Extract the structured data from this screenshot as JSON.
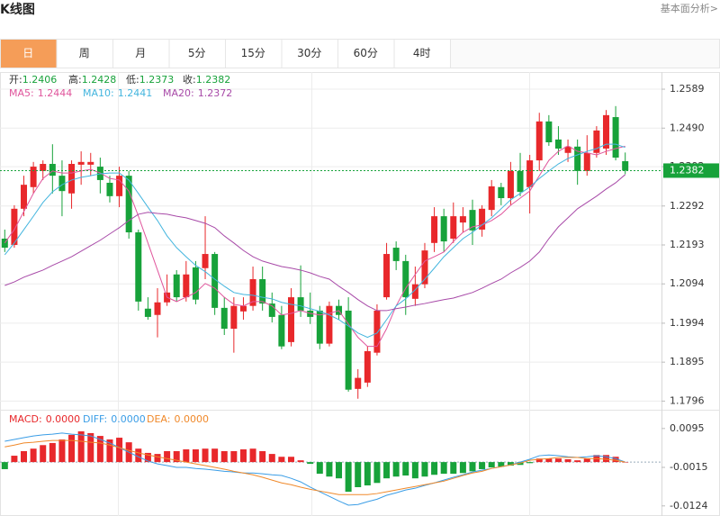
{
  "header": {
    "title": "K线图",
    "link": "基本面分析>"
  },
  "tabs": {
    "items": [
      "日",
      "周",
      "月",
      "5分",
      "15分",
      "30分",
      "60分",
      "4时"
    ],
    "selected": 0
  },
  "chart_data": [
    {
      "type": "candlestick",
      "ohlc_labels": [
        "开:",
        "高:",
        "低:",
        "收:"
      ],
      "open": [
        1.2209,
        1.2193,
        1.2285,
        1.234,
        1.2381,
        1.2399,
        1.2369,
        1.2324,
        1.2397,
        1.2397,
        1.2392,
        1.2351,
        1.2317,
        1.2369,
        1.2225,
        1.2031,
        1.2015,
        1.2047,
        1.2118,
        1.206,
        1.2136,
        1.2134,
        1.217,
        1.2033,
        1.198,
        1.2024,
        1.2038,
        1.2106,
        1.2044,
        1.2015,
        1.1946,
        1.206,
        1.2026,
        1.2026,
        1.1942,
        1.2038,
        1.2026,
        1.1827,
        1.1843,
        1.1919,
        1.206,
        1.2186,
        1.2152,
        1.2056,
        1.2093,
        1.2198,
        1.2266,
        1.2209,
        1.225,
        1.2282,
        1.2232,
        1.2282,
        1.234,
        1.2312,
        1.2381,
        1.234,
        1.2408,
        1.2507,
        1.2461,
        1.2427,
        1.2443,
        1.2381,
        1.2427,
        1.2438,
        1.2518,
        1.2406
      ],
      "high": [
        1.2232,
        1.2294,
        1.2369,
        1.2404,
        1.2408,
        1.2449,
        1.2408,
        1.2408,
        1.2431,
        1.2427,
        1.2415,
        1.2369,
        1.2392,
        1.2381,
        1.2232,
        1.206,
        1.2083,
        1.2118,
        1.2129,
        1.2152,
        1.2152,
        1.2266,
        1.2175,
        1.206,
        1.206,
        1.206,
        1.2138,
        1.2138,
        1.2072,
        1.2038,
        1.2083,
        1.2141,
        1.2072,
        1.2038,
        1.2049,
        1.2054,
        1.206,
        1.1877,
        1.1935,
        1.2042,
        1.2198,
        1.2202,
        1.2168,
        1.2138,
        1.2198,
        1.2289,
        1.2285,
        1.2301,
        1.2289,
        1.2308,
        1.2294,
        1.2358,
        1.2351,
        1.2404,
        1.2427,
        1.2422,
        1.2529,
        1.2523,
        1.2495,
        1.2461,
        1.2461,
        1.2472,
        1.2495,
        1.2536,
        1.2546,
        1.2428
      ],
      "low": [
        1.2175,
        1.2186,
        1.2266,
        1.2324,
        1.2358,
        1.2324,
        1.2266,
        1.2285,
        1.2346,
        1.2369,
        1.2324,
        1.2301,
        1.2289,
        1.2209,
        1.2026,
        1.2003,
        1.1958,
        1.2038,
        1.2049,
        1.2049,
        1.2042,
        1.2106,
        1.2015,
        1.1964,
        1.1919,
        1.2003,
        1.2026,
        1.2026,
        1.1996,
        1.1928,
        1.1935,
        1.201,
        1.1992,
        1.1928,
        1.1935,
        1.2003,
        1.182,
        1.1802,
        1.1832,
        1.1912,
        1.2054,
        1.2129,
        1.2015,
        1.2038,
        1.2083,
        1.2175,
        1.2175,
        1.2198,
        1.2225,
        1.2193,
        1.2214,
        1.2266,
        1.2294,
        1.2294,
        1.2317,
        1.2273,
        1.2381,
        1.2445,
        1.2422,
        1.2404,
        1.2346,
        1.2369,
        1.2415,
        1.2422,
        1.2408,
        1.2373
      ],
      "close": [
        1.2186,
        1.2285,
        1.2346,
        1.2392,
        1.2399,
        1.2369,
        1.233,
        1.2399,
        1.2404,
        1.2404,
        1.2358,
        1.2317,
        1.2369,
        1.2225,
        1.2049,
        1.201,
        1.2047,
        1.2072,
        1.206,
        1.2118,
        1.2054,
        1.217,
        1.2033,
        1.198,
        1.2038,
        1.2038,
        1.2106,
        1.2044,
        1.201,
        1.1935,
        1.206,
        1.2026,
        1.201,
        1.1942,
        1.2038,
        1.2015,
        1.1825,
        1.1855,
        1.1923,
        1.2026,
        1.217,
        1.2152,
        1.206,
        1.2093,
        1.2179,
        1.2266,
        1.2202,
        1.2266,
        1.2266,
        1.223,
        1.2285,
        1.2342,
        1.2312,
        1.2381,
        1.2328,
        1.2408,
        1.2507,
        1.2454,
        1.2438,
        1.2443,
        1.2381,
        1.2427,
        1.2484,
        1.2523,
        1.2415,
        1.2382
      ],
      "up_color": "#e8282b",
      "down_color": "#17a23a",
      "series": [
        {
          "name": "MA5:",
          "color": "#e0559c",
          "values": [
            1.2198,
            1.2232,
            1.2278,
            1.2324,
            1.2362,
            1.2381,
            1.2376,
            1.2376,
            1.2381,
            1.2385,
            1.2376,
            1.2362,
            1.2358,
            1.233,
            1.2266,
            1.2198,
            1.2129,
            1.206,
            1.2049,
            1.206,
            1.2072,
            1.2095,
            1.2083,
            1.206,
            1.2042,
            1.2038,
            1.2049,
            1.2049,
            1.2038,
            1.2015,
            1.2019,
            1.2026,
            1.2019,
            1.2015,
            1.2019,
            1.2026,
            1.1992,
            1.1958,
            1.1935,
            1.1935,
            1.198,
            1.2038,
            1.2083,
            1.2118,
            1.2152,
            1.2163,
            1.2175,
            1.2202,
            1.2225,
            1.2239,
            1.2244,
            1.2255,
            1.2271,
            1.2294,
            1.2312,
            1.233,
            1.2369,
            1.2408,
            1.2431,
            1.2445,
            1.2431,
            1.2427,
            1.2422,
            1.2431,
            1.2438,
            1.2444
          ]
        },
        {
          "name": "MA10:",
          "color": "#43b5de",
          "values": [
            1.2168,
            1.2198,
            1.2232,
            1.2266,
            1.2301,
            1.2328,
            1.2346,
            1.2358,
            1.2365,
            1.2369,
            1.2374,
            1.2376,
            1.2376,
            1.2358,
            1.2324,
            1.2289,
            1.2255,
            1.2216,
            1.2186,
            1.2163,
            1.2141,
            1.2125,
            1.2106,
            1.2088,
            1.2072,
            1.2067,
            1.2065,
            1.206,
            1.2056,
            1.2047,
            1.2042,
            1.2038,
            1.2031,
            1.2024,
            1.2015,
            1.2003,
            1.1987,
            1.1969,
            1.1958,
            1.1969,
            1.2003,
            1.2038,
            1.2056,
            1.2079,
            1.2106,
            1.2134,
            1.2163,
            1.2186,
            1.2209,
            1.2225,
            1.2244,
            1.2262,
            1.2285,
            1.2308,
            1.2324,
            1.234,
            1.2362,
            1.2381,
            1.2399,
            1.2413,
            1.2422,
            1.2431,
            1.2438,
            1.2449,
            1.2449,
            1.2441
          ]
        },
        {
          "name": "MA20:",
          "color": "#a84aa8",
          "values": [
            1.209,
            1.2099,
            1.2111,
            1.212,
            1.2129,
            1.2141,
            1.2152,
            1.2163,
            1.2177,
            1.2191,
            1.2205,
            1.2221,
            1.2237,
            1.2255,
            1.2271,
            1.2276,
            1.2273,
            1.2271,
            1.2266,
            1.2262,
            1.2255,
            1.2248,
            1.2237,
            1.2216,
            1.2198,
            1.2179,
            1.2163,
            1.2152,
            1.2145,
            1.2138,
            1.2134,
            1.2129,
            1.2122,
            1.2113,
            1.2106,
            1.2088,
            1.2072,
            1.2054,
            1.2038,
            1.2026,
            1.2026,
            1.2031,
            1.2035,
            1.204,
            1.2044,
            1.2049,
            1.2054,
            1.2058,
            1.2065,
            1.2072,
            1.2083,
            1.2095,
            1.2106,
            1.2122,
            1.2136,
            1.2152,
            1.2175,
            1.2209,
            1.2239,
            1.2262,
            1.2285,
            1.2301,
            1.2317,
            1.2335,
            1.2351,
            1.2372
          ]
        }
      ],
      "ylim": [
        1.1774,
        1.2628
      ],
      "yticks": [
        1.1796,
        1.1895,
        1.1994,
        1.2094,
        1.2193,
        1.2292,
        1.2392,
        {
          "value": 1.249,
          "label": "1.2490"
        },
        1.2589
      ],
      "grid": true
    },
    {
      "type": "macd",
      "up_color": "#e8282b",
      "down_color": "#17a23a",
      "series": [
        {
          "name": "MACD:",
          "style": "bar",
          "color": "#e8282b",
          "readout_label": "0.0000",
          "values": [
            -0.002,
            0.0018,
            0.0031,
            0.0038,
            0.0048,
            0.0054,
            0.0064,
            0.0077,
            0.0087,
            0.0082,
            0.0074,
            0.0064,
            0.0069,
            0.0056,
            0.0038,
            0.0026,
            0.0023,
            0.0031,
            0.0031,
            0.0036,
            0.0036,
            0.0038,
            0.0038,
            0.0031,
            0.0031,
            0.0036,
            0.0038,
            0.0031,
            0.0023,
            0.0015,
            0.0015,
            0.0005,
            -0.0005,
            -0.0033,
            -0.0041,
            -0.0046,
            -0.0084,
            -0.0071,
            -0.0066,
            -0.0059,
            -0.0046,
            -0.0041,
            -0.0038,
            -0.0046,
            -0.0041,
            -0.0036,
            -0.0033,
            -0.0033,
            -0.0031,
            -0.0026,
            -0.002,
            -0.0015,
            -0.0013,
            -0.001,
            -0.0008,
            -0.0003,
            0.001,
            0.001,
            0.001,
            0.0008,
            0.0005,
            0.001,
            0.002,
            0.002,
            0.0015,
            0
          ]
        },
        {
          "name": "DIFF:",
          "style": "line",
          "color": "#3a9de6",
          "readout_label": "0.0000",
          "values": [
            0.0059,
            0.0064,
            0.0069,
            0.0074,
            0.0077,
            0.0079,
            0.0082,
            0.0079,
            0.0077,
            0.0074,
            0.0064,
            0.0054,
            0.0041,
            0.0028,
            0.0015,
            0.0003,
            -0.0005,
            -0.001,
            -0.0015,
            -0.0015,
            -0.0018,
            -0.002,
            -0.0023,
            -0.0026,
            -0.0028,
            -0.0031,
            -0.0031,
            -0.0033,
            -0.0036,
            -0.0038,
            -0.0046,
            -0.0056,
            -0.0071,
            -0.0084,
            -0.0097,
            -0.011,
            -0.0122,
            -0.012,
            -0.0112,
            -0.0105,
            -0.0094,
            -0.0087,
            -0.0079,
            -0.0074,
            -0.0066,
            -0.0059,
            -0.0051,
            -0.0043,
            -0.0036,
            -0.0028,
            -0.0023,
            -0.0018,
            -0.0013,
            -0.0008,
            0.0,
            0.0008,
            0.0018,
            0.002,
            0.0018,
            0.0015,
            0.0013,
            0.0015,
            0.0018,
            0.0015,
            0.001,
            0
          ]
        },
        {
          "name": "DEA:",
          "style": "line",
          "color": "#f0892a",
          "readout_label": "0.0000",
          "values": [
            0.0043,
            0.0048,
            0.0054,
            0.0056,
            0.0059,
            0.0061,
            0.0061,
            0.0061,
            0.0059,
            0.0056,
            0.0054,
            0.0048,
            0.0041,
            0.0033,
            0.0026,
            0.002,
            0.0015,
            0.001,
            0.0005,
            0.0,
            -0.0005,
            -0.001,
            -0.0015,
            -0.002,
            -0.0026,
            -0.0031,
            -0.0036,
            -0.0043,
            -0.0051,
            -0.0059,
            -0.0064,
            -0.0071,
            -0.0077,
            -0.0082,
            -0.0087,
            -0.0092,
            -0.0092,
            -0.0092,
            -0.0092,
            -0.0089,
            -0.0084,
            -0.0079,
            -0.0074,
            -0.0069,
            -0.0064,
            -0.0059,
            -0.0054,
            -0.0046,
            -0.0038,
            -0.0031,
            -0.0026,
            -0.0018,
            -0.0013,
            -0.0008,
            -0.0003,
            0.0005,
            0.0008,
            0.001,
            0.0013,
            0.0013,
            0.0013,
            0.001,
            0.001,
            0.0008,
            0.0005,
            0
          ]
        }
      ],
      "ylim": [
        -0.015,
        0.0143
      ],
      "yticks": [
        -0.0124,
        -0.0015,
        0.0095
      ]
    }
  ]
}
